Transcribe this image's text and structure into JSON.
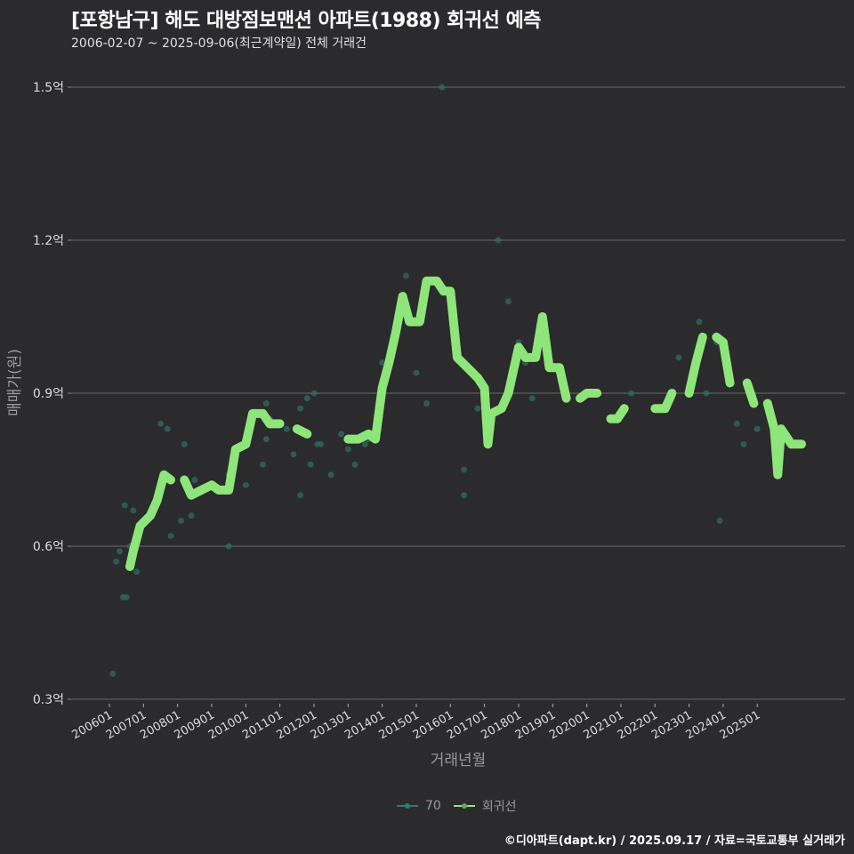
{
  "header": {
    "title": "[포항남구] 해도 대방점보맨션 아파트(1988) 회귀선 예측",
    "subtitle": "2006-02-07 ~ 2025-09-06(최근계약일) 전체 거래건"
  },
  "footer": {
    "credit": "©디아파트(dapt.kr) / 2025.09.17 / 자료=국토교통부 실거래가"
  },
  "legend": [
    {
      "label": "70",
      "color": "#2a7f74"
    },
    {
      "label": "회귀선",
      "color": "#8ee57a"
    }
  ],
  "colors": {
    "background": "#2b2a2c",
    "grid": "#6a6a6a",
    "scatter": "#2f6b63",
    "regression": "#8ee57a"
  },
  "chart_data": {
    "type": "line",
    "title": "[포항남구] 해도 대방점보맨션 아파트(1988) 회귀선 예측",
    "subtitle": "2006-02-07 ~ 2025-09-06(최근계약일) 전체 거래건",
    "xlabel": "거래년월",
    "ylabel": "매매가(원)",
    "ylim": [
      0.3,
      1.5
    ],
    "yunit": "억",
    "y_ticks": [
      "0.3억",
      "0.6억",
      "0.9억",
      "1.2억",
      "1.5억"
    ],
    "x_ticks": [
      "200601",
      "200701",
      "200801",
      "200901",
      "201001",
      "201101",
      "201201",
      "201301",
      "201401",
      "201501",
      "201601",
      "201701",
      "201801",
      "201901",
      "202001",
      "202101",
      "202201",
      "202301",
      "202401",
      "202501"
    ],
    "grid": true,
    "legend_position": "bottom",
    "series": [
      {
        "name": "70",
        "kind": "scatter",
        "points": [
          [
            2006.1,
            0.35
          ],
          [
            2006.2,
            0.57
          ],
          [
            2006.3,
            0.59
          ],
          [
            2006.4,
            0.5
          ],
          [
            2006.5,
            0.5
          ],
          [
            2006.45,
            0.68
          ],
          [
            2006.6,
            0.6
          ],
          [
            2006.7,
            0.67
          ],
          [
            2006.8,
            0.55
          ],
          [
            2007.5,
            0.84
          ],
          [
            2007.7,
            0.83
          ],
          [
            2007.8,
            0.62
          ],
          [
            2008.1,
            0.65
          ],
          [
            2008.2,
            0.8
          ],
          [
            2008.4,
            0.66
          ],
          [
            2008.5,
            0.73
          ],
          [
            2009.5,
            0.6
          ],
          [
            2009.5,
            0.74
          ],
          [
            2010.0,
            0.72
          ],
          [
            2010.5,
            0.76
          ],
          [
            2010.6,
            0.81
          ],
          [
            2010.6,
            0.88
          ],
          [
            2010.7,
            0.85
          ],
          [
            2011.0,
            0.84
          ],
          [
            2011.2,
            0.83
          ],
          [
            2011.4,
            0.78
          ],
          [
            2011.6,
            0.7
          ],
          [
            2011.6,
            0.87
          ],
          [
            2011.8,
            0.89
          ],
          [
            2011.9,
            0.76
          ],
          [
            2012.0,
            0.9
          ],
          [
            2012.1,
            0.8
          ],
          [
            2012.2,
            0.8
          ],
          [
            2012.5,
            0.74
          ],
          [
            2012.8,
            0.82
          ],
          [
            2013.0,
            0.79
          ],
          [
            2013.2,
            0.76
          ],
          [
            2013.5,
            0.8
          ],
          [
            2013.6,
            0.81
          ],
          [
            2014.0,
            0.96
          ],
          [
            2014.7,
            1.13
          ],
          [
            2015.0,
            0.94
          ],
          [
            2015.2,
            1.07
          ],
          [
            2015.3,
            0.88
          ],
          [
            2015.75,
            1.5
          ],
          [
            2015.8,
            1.1
          ],
          [
            2016.4,
            0.7
          ],
          [
            2016.4,
            0.75
          ],
          [
            2016.8,
            0.87
          ],
          [
            2017.0,
            0.9
          ],
          [
            2017.2,
            0.83
          ],
          [
            2017.4,
            1.2
          ],
          [
            2017.7,
            1.08
          ],
          [
            2018.0,
            1.0
          ],
          [
            2018.2,
            0.96
          ],
          [
            2018.4,
            0.89
          ],
          [
            2020.9,
            0.85
          ],
          [
            2021.3,
            0.9
          ],
          [
            2022.0,
            0.87
          ],
          [
            2022.7,
            0.97
          ],
          [
            2023.3,
            1.04
          ],
          [
            2023.5,
            0.9
          ],
          [
            2023.8,
            1.0
          ],
          [
            2023.9,
            0.65
          ],
          [
            2024.4,
            0.84
          ],
          [
            2024.6,
            0.8
          ],
          [
            2025.0,
            0.83
          ],
          [
            2025.6,
            0.77
          ]
        ]
      },
      {
        "name": "회귀선",
        "kind": "line",
        "points": [
          [
            2006.0,
            0.56
          ],
          [
            2006.6,
            0.56
          ],
          [
            2006.7,
            0.59
          ],
          [
            2006.9,
            0.64
          ],
          [
            2007.2,
            0.66
          ],
          [
            2007.4,
            0.69
          ],
          [
            2007.6,
            0.74
          ],
          [
            2007.8,
            0.73
          ],
          [
            2008.2,
            0.73
          ],
          [
            2008.4,
            0.7
          ],
          [
            2008.7,
            0.71
          ],
          [
            2009.0,
            0.72
          ],
          [
            2009.2,
            0.71
          ],
          [
            2009.5,
            0.71
          ],
          [
            2009.7,
            0.79
          ],
          [
            2010.0,
            0.8
          ],
          [
            2010.2,
            0.86
          ],
          [
            2010.5,
            0.86
          ],
          [
            2010.7,
            0.84
          ],
          [
            2011.0,
            0.84
          ],
          [
            2011.5,
            0.83
          ],
          [
            2011.8,
            0.82
          ],
          [
            2012.2,
            0.82
          ],
          [
            2012.6,
            0.82
          ],
          [
            2013.0,
            0.81
          ],
          [
            2013.3,
            0.81
          ],
          [
            2013.6,
            0.82
          ],
          [
            2013.8,
            0.81
          ],
          [
            2014.0,
            0.91
          ],
          [
            2014.2,
            0.96
          ],
          [
            2014.4,
            1.02
          ],
          [
            2014.6,
            1.09
          ],
          [
            2014.8,
            1.04
          ],
          [
            2015.1,
            1.04
          ],
          [
            2015.3,
            1.12
          ],
          [
            2015.6,
            1.12
          ],
          [
            2015.8,
            1.1
          ],
          [
            2016.0,
            1.1
          ],
          [
            2016.2,
            0.97
          ],
          [
            2016.5,
            0.95
          ],
          [
            2016.8,
            0.93
          ],
          [
            2017.0,
            0.91
          ],
          [
            2017.1,
            0.8
          ],
          [
            2017.2,
            0.86
          ],
          [
            2017.5,
            0.87
          ],
          [
            2017.7,
            0.9
          ],
          [
            2018.0,
            0.99
          ],
          [
            2018.2,
            0.97
          ],
          [
            2018.5,
            0.97
          ],
          [
            2018.7,
            1.05
          ],
          [
            2018.9,
            0.95
          ],
          [
            2019.2,
            0.95
          ],
          [
            2019.4,
            0.89
          ],
          [
            2019.8,
            0.89
          ],
          [
            2020.0,
            0.9
          ],
          [
            2020.3,
            0.9
          ],
          [
            2020.7,
            0.85
          ],
          [
            2020.9,
            0.85
          ],
          [
            2021.1,
            0.87
          ],
          [
            2021.6,
            0.87
          ],
          [
            2022.0,
            0.87
          ],
          [
            2022.3,
            0.87
          ],
          [
            2022.5,
            0.9
          ],
          [
            2023.0,
            0.9
          ],
          [
            2023.2,
            0.96
          ],
          [
            2023.4,
            1.01
          ],
          [
            2023.8,
            1.01
          ],
          [
            2024.0,
            1.0
          ],
          [
            2024.2,
            0.92
          ],
          [
            2024.7,
            0.92
          ],
          [
            2024.9,
            0.88
          ],
          [
            2025.3,
            0.88
          ],
          [
            2025.5,
            0.83
          ],
          [
            2025.6,
            0.74
          ],
          [
            2025.7,
            0.83
          ],
          [
            2026.0,
            0.8
          ],
          [
            2026.3,
            0.8
          ]
        ]
      }
    ]
  }
}
